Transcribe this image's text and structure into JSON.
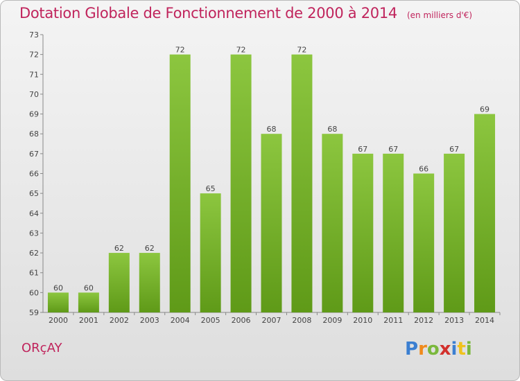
{
  "title": "Dotation Globale de Fonctionnement de 2000 à 2014",
  "subtitle": "(en milliers d'€)",
  "commune": "ORçAY",
  "logo": {
    "letters": [
      "P",
      "r",
      "o",
      "x",
      "i",
      "t",
      "i"
    ],
    "colors": [
      "#3b7fd1",
      "#f08a1c",
      "#7ab83c",
      "#d2302c",
      "#3b7fd1",
      "#f0c21c",
      "#7ab83c"
    ]
  },
  "chart_data": {
    "type": "bar",
    "title": "Dotation Globale de Fonctionnement de 2000 à 2014",
    "subtitle": "(en milliers d'€)",
    "xlabel": "",
    "ylabel": "",
    "categories": [
      "2000",
      "2001",
      "2002",
      "2003",
      "2004",
      "2005",
      "2006",
      "2007",
      "2008",
      "2009",
      "2010",
      "2011",
      "2012",
      "2013",
      "2014"
    ],
    "values": [
      60,
      60,
      62,
      62,
      72,
      65,
      72,
      68,
      72,
      68,
      67,
      67,
      66,
      67,
      69
    ],
    "ylim": [
      59,
      73
    ],
    "yticks": [
      59,
      60,
      61,
      62,
      63,
      64,
      65,
      66,
      67,
      68,
      69,
      70,
      71,
      72,
      73
    ],
    "grid": false,
    "bar_color": "#8cc63f",
    "bar_color_dark": "#5f9a18"
  }
}
